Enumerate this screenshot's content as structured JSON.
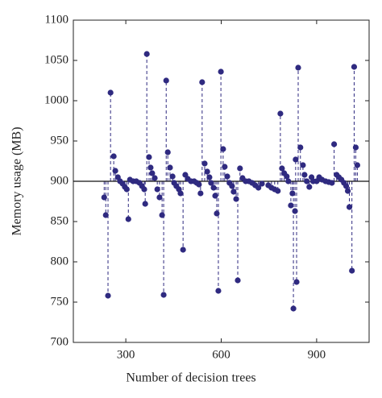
{
  "chart_data": {
    "type": "stem",
    "x_label": "Number of decision trees",
    "y_label": "Memory usage (MB)",
    "xlim": [
      135,
      1065
    ],
    "xticks": [
      300,
      600,
      900
    ],
    "ylim": [
      700,
      1100
    ],
    "yticks": [
      700,
      750,
      800,
      850,
      900,
      950,
      1000,
      1050,
      1100
    ],
    "baseline": 900,
    "color": "#2f2a80",
    "x": [
      232,
      237,
      244,
      252,
      262,
      267,
      275,
      282,
      290,
      297,
      303,
      308,
      313,
      323,
      333,
      343,
      351,
      358,
      361,
      366,
      373,
      378,
      383,
      391,
      399,
      406,
      414,
      419,
      427,
      432,
      439,
      447,
      452,
      459,
      467,
      472,
      480,
      487,
      495,
      505,
      515,
      523,
      530,
      535,
      540,
      548,
      556,
      563,
      568,
      576,
      581,
      586,
      591,
      599,
      606,
      611,
      619,
      626,
      634,
      639,
      647,
      652,
      659,
      667,
      677,
      687,
      697,
      707,
      717,
      728,
      748,
      758,
      768,
      778,
      786,
      791,
      798,
      806,
      811,
      819,
      824,
      827,
      832,
      834,
      837,
      842,
      849,
      857,
      862,
      869,
      877,
      884,
      889,
      900,
      908,
      917,
      928,
      938,
      948,
      955,
      963,
      970,
      978,
      986,
      993,
      998,
      1003,
      1011,
      1018,
      1023,
      1028
    ],
    "values": [
      880,
      858,
      758,
      1010,
      931,
      913,
      905,
      900,
      897,
      893,
      890,
      853,
      902,
      900,
      900,
      898,
      894,
      890,
      872,
      1058,
      930,
      917,
      910,
      904,
      890,
      880,
      858,
      759,
      1025,
      936,
      917,
      906,
      898,
      894,
      890,
      885,
      815,
      908,
      903,
      900,
      900,
      898,
      896,
      885,
      1023,
      922,
      912,
      905,
      898,
      892,
      882,
      860,
      764,
      1036,
      940,
      918,
      906,
      898,
      894,
      887,
      878,
      777,
      916,
      904,
      900,
      900,
      898,
      895,
      892,
      897,
      895,
      892,
      890,
      888,
      984,
      916,
      910,
      906,
      900,
      870,
      885,
      742,
      863,
      927,
      775,
      1041,
      942,
      920,
      908,
      900,
      893,
      905,
      900,
      900,
      905,
      902,
      900,
      899,
      898,
      946,
      908,
      905,
      902,
      898,
      894,
      888,
      868,
      789,
      1042,
      942,
      920
    ]
  }
}
